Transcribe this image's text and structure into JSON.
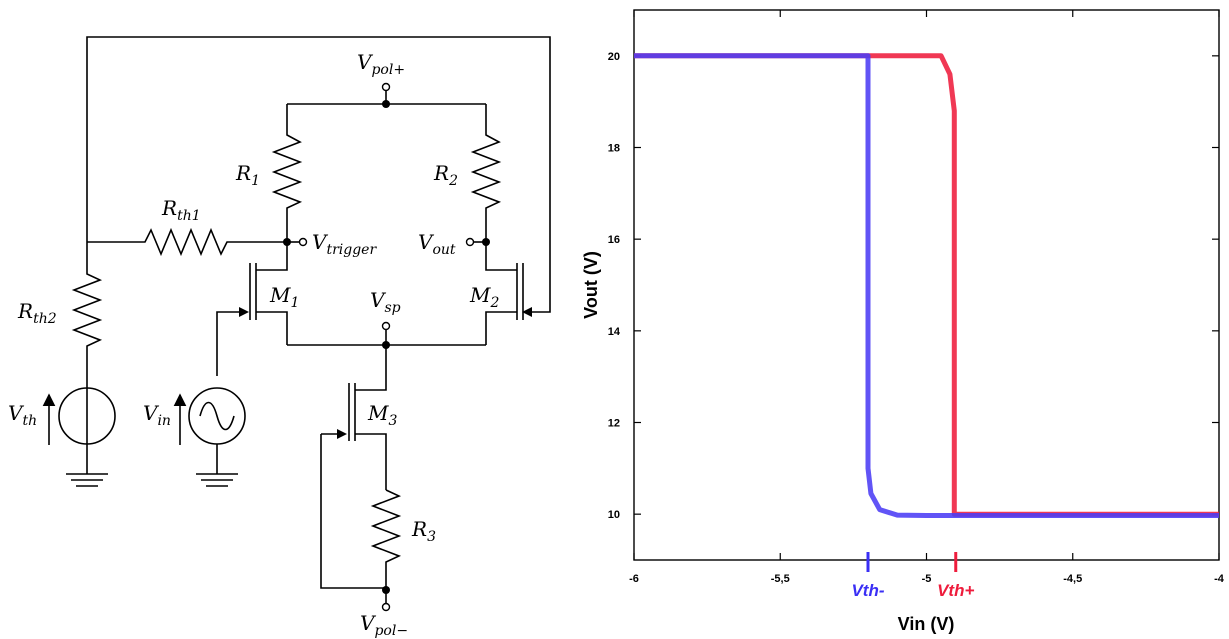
{
  "circuit": {
    "labels": {
      "vpol_plus": {
        "main": "V",
        "sub": "pol+"
      },
      "r1": {
        "main": "R",
        "sub": "1"
      },
      "r2": {
        "main": "R",
        "sub": "2"
      },
      "rth1": {
        "main": "R",
        "sub": "th1"
      },
      "rth2": {
        "main": "R",
        "sub": "th2"
      },
      "vtrigger": {
        "main": "V",
        "sub": "trigger"
      },
      "vout": {
        "main": "V",
        "sub": "out"
      },
      "m1": {
        "main": "M",
        "sub": "1"
      },
      "m2": {
        "main": "M",
        "sub": "2"
      },
      "vsp": {
        "main": "V",
        "sub": "sp"
      },
      "vth": {
        "main": "V",
        "sub": "th"
      },
      "vin": {
        "main": "V",
        "sub": "in"
      },
      "m3": {
        "main": "M",
        "sub": "3"
      },
      "r3": {
        "main": "R",
        "sub": "3"
      },
      "vpol_minus": {
        "main": "V",
        "sub": "pol−"
      }
    }
  },
  "chart_data": {
    "type": "line",
    "xlabel": "Vin (V)",
    "ylabel": "Vout (V)",
    "xlim": [
      -6,
      -4
    ],
    "ylim": [
      9.0,
      21.0
    ],
    "x_ticks": [
      {
        "v": -6,
        "label": "-6"
      },
      {
        "v": -5.5,
        "label": "-5,5"
      },
      {
        "v": -5,
        "label": "-5"
      },
      {
        "v": -4.5,
        "label": "-4,5"
      },
      {
        "v": -4,
        "label": "-4"
      }
    ],
    "y_ticks": [
      {
        "v": 10,
        "label": "10"
      },
      {
        "v": 12,
        "label": "12"
      },
      {
        "v": 14,
        "label": "14"
      },
      {
        "v": 16,
        "label": "16"
      },
      {
        "v": 18,
        "label": "18"
      },
      {
        "v": 20,
        "label": "20"
      }
    ],
    "series": [
      {
        "color": "#ee1c3c",
        "x": [
          -6,
          -5.06,
          -4.95,
          -4.92,
          -4.905,
          -4.905,
          -4.9,
          -4
        ],
        "y": [
          20.0,
          20.0,
          20.0,
          19.6,
          18.8,
          10.0,
          10.0,
          10.0
        ]
      },
      {
        "color": "#4b3cf5",
        "x": [
          -6,
          -5.2,
          -5.2,
          -5.19,
          -5.16,
          -5.1,
          -5.0,
          -4
        ],
        "y": [
          20.0,
          20.0,
          11.0,
          10.45,
          10.1,
          9.98,
          9.97,
          9.97
        ]
      }
    ],
    "markers": [
      {
        "label": "Vth-",
        "x": -5.2,
        "color": "#3a2ff5"
      },
      {
        "label": "Vth+",
        "x": -4.9,
        "color": "#ee1c3c"
      }
    ]
  }
}
